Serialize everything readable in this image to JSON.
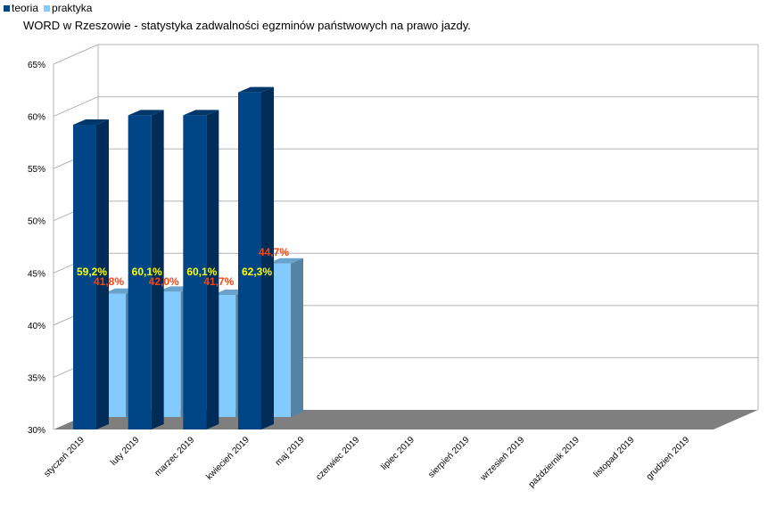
{
  "title": "WORD w Rzeszowie - statystyka zadwalności egzminów państwowych na prawo jazdy.",
  "legend": [
    {
      "label": "teoria",
      "color": "#004586"
    },
    {
      "label": "praktyka",
      "color": "#83caff"
    }
  ],
  "chart_data": {
    "type": "bar",
    "title": "WORD w Rzeszowie - statystyka zadwalności egzminów państwowych na prawo jazdy.",
    "categories": [
      "styczeń 2019",
      "luty 2019",
      "marzec 2019",
      "kwiecień 2019",
      "maj 2019",
      "czerwiec 2019",
      "lipiec 2019",
      "sierpień 2019",
      "wrzesień 2019",
      "październik 2019",
      "listopad 2019",
      "grudzień 2019"
    ],
    "series": [
      {
        "name": "teoria",
        "color": "#004586",
        "values": [
          59.2,
          60.1,
          60.1,
          62.3,
          null,
          null,
          null,
          null,
          null,
          null,
          null,
          null
        ],
        "labels": [
          "59,2%",
          "60,1%",
          "60,1%",
          "62,3%",
          "",
          "",
          "",
          "",
          "",
          "",
          "",
          ""
        ]
      },
      {
        "name": "praktyka",
        "color": "#83caff",
        "values": [
          41.8,
          42.0,
          41.7,
          44.7,
          null,
          null,
          null,
          null,
          null,
          null,
          null,
          null
        ],
        "labels": [
          "41,8%",
          "42,0%",
          "41,7%",
          "44,7%",
          "",
          "",
          "",
          "",
          "",
          "",
          "",
          ""
        ]
      }
    ],
    "yticks": [
      "30%",
      "35%",
      "40%",
      "45%",
      "50%",
      "55%",
      "60%",
      "65%"
    ],
    "ylim": [
      30,
      65
    ],
    "grid": true,
    "legend_position": "top-left",
    "three_d": true
  }
}
